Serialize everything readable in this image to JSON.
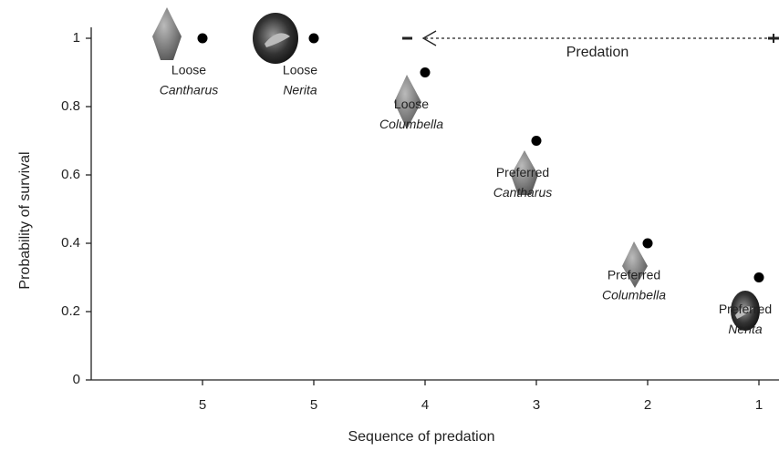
{
  "chart_data": {
    "type": "scatter",
    "x_label": "Sequence of predation",
    "y_label": "Probability of survival",
    "categories": [
      "5",
      "5",
      "4",
      "3",
      "2",
      "1"
    ],
    "series": [
      {
        "color": "#000000",
        "values": [
          1,
          1,
          0.9,
          0.7,
          0.4,
          0.3
        ]
      }
    ],
    "point_labels": [
      {
        "status": "Loose",
        "genus": "Cantharus"
      },
      {
        "status": "Loose",
        "genus": "Nerita"
      },
      {
        "status": "Loose",
        "genus": "Columbella"
      },
      {
        "status": "Preferred",
        "genus": "Cantharus"
      },
      {
        "status": "Preferred",
        "genus": "Columbella"
      },
      {
        "status": "Preferred",
        "genus": "Nerita"
      }
    ],
    "annotation": "Predation",
    "ylim": [
      0,
      1
    ],
    "yticks": [
      0,
      0.2,
      0.4,
      0.6,
      0.8,
      1
    ]
  }
}
